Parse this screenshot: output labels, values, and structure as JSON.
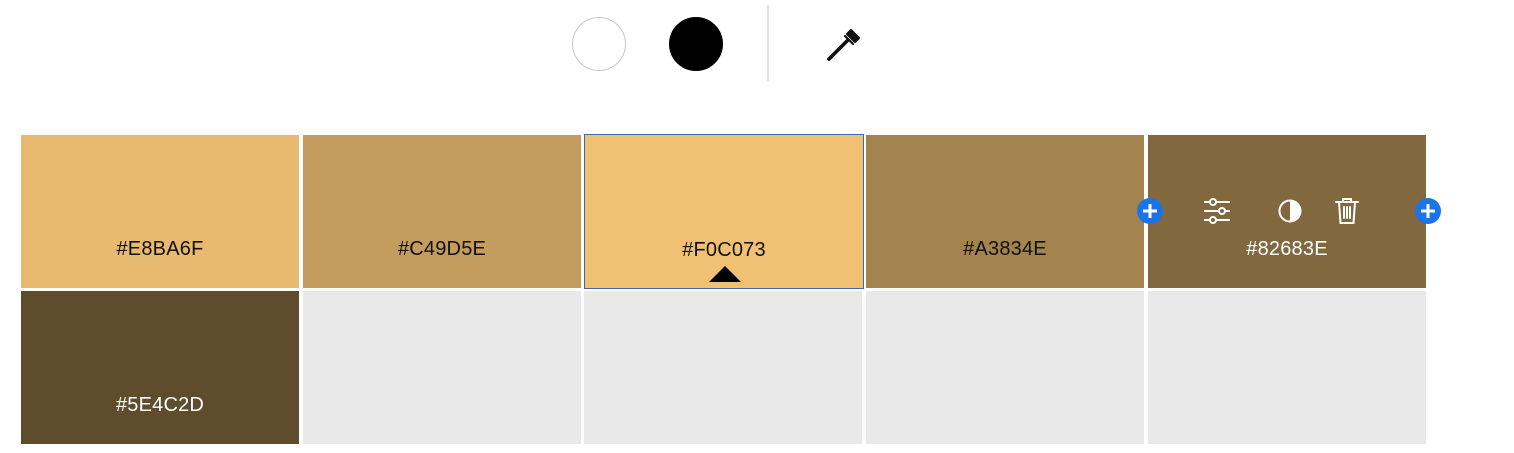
{
  "toolbar": {
    "white_swatch_color": "#FFFFFF",
    "black_swatch_color": "#000000",
    "eyedropper_icon": "eyedropper-icon"
  },
  "palette": {
    "swatches": [
      {
        "hex": "#E8BA6F",
        "color": "#E8BA6F",
        "text_color": "dark"
      },
      {
        "hex": "#C49D5E",
        "color": "#C49D5E",
        "text_color": "dark"
      },
      {
        "hex": "#F0C073",
        "color": "#F0C073",
        "text_color": "dark",
        "selected": true
      },
      {
        "hex": "#A3834E",
        "color": "#A3834E",
        "text_color": "dark"
      },
      {
        "hex": "#82683E",
        "color": "#82683E",
        "text_color": "light",
        "hovered": true
      },
      {
        "hex": "#5E4C2D",
        "color": "#5E4C2D",
        "text_color": "light"
      }
    ],
    "empty_slot_color": "#E9E9E9",
    "empty_slots": 4
  },
  "hover_tools": [
    "add-before-icon",
    "adjust-sliders-icon",
    "contrast-icon",
    "trash-icon",
    "add-after-icon"
  ],
  "accent_color": "#1A73E8"
}
